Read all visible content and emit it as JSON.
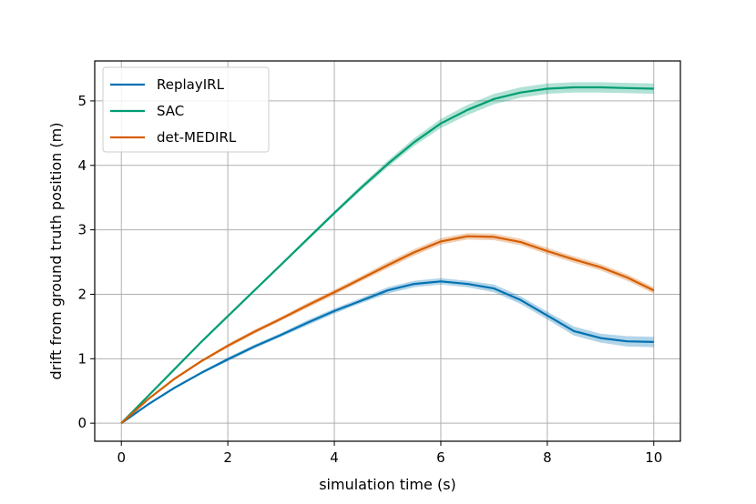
{
  "chart_data": {
    "type": "line",
    "title": "",
    "xlabel": "simulation time (s)",
    "ylabel": "drift from ground truth position (m)",
    "xlim": [
      -0.5,
      10.5
    ],
    "ylim": [
      -0.28,
      5.62
    ],
    "xticks": [
      0,
      2,
      4,
      6,
      8,
      10
    ],
    "yticks": [
      0,
      1,
      2,
      3,
      4,
      5
    ],
    "xtick_labels": [
      "0",
      "2",
      "4",
      "6",
      "8",
      "10"
    ],
    "ytick_labels": [
      "0",
      "1",
      "2",
      "3",
      "4",
      "5"
    ],
    "grid": true,
    "legend_position": "top-left",
    "series": [
      {
        "name": "ReplayIRL",
        "color": "#0072b2",
        "x": [
          0,
          0.5,
          1,
          1.5,
          2,
          2.5,
          3,
          3.5,
          4,
          4.5,
          5,
          5.5,
          6,
          6.5,
          7,
          7.5,
          8,
          8.5,
          9,
          9.5,
          10
        ],
        "values": [
          0,
          0.29,
          0.55,
          0.78,
          0.99,
          1.19,
          1.37,
          1.56,
          1.74,
          1.9,
          2.06,
          2.16,
          2.2,
          2.16,
          2.09,
          1.91,
          1.67,
          1.43,
          1.32,
          1.27,
          1.26
        ],
        "band": [
          0,
          0.01,
          0.02,
          0.02,
          0.03,
          0.03,
          0.03,
          0.04,
          0.04,
          0.04,
          0.05,
          0.05,
          0.05,
          0.05,
          0.06,
          0.06,
          0.06,
          0.07,
          0.07,
          0.08,
          0.08
        ]
      },
      {
        "name": "SAC",
        "color": "#009e73",
        "x": [
          0,
          0.5,
          1,
          1.5,
          2,
          2.5,
          3,
          3.5,
          4,
          4.5,
          5,
          5.5,
          6,
          6.5,
          7,
          7.5,
          8,
          8.5,
          9,
          9.5,
          10
        ],
        "values": [
          0,
          0.42,
          0.84,
          1.26,
          1.66,
          2.06,
          2.46,
          2.86,
          3.26,
          3.65,
          4.02,
          4.36,
          4.65,
          4.86,
          5.03,
          5.13,
          5.19,
          5.21,
          5.21,
          5.2,
          5.19
        ],
        "band": [
          0,
          0.01,
          0.01,
          0.02,
          0.02,
          0.02,
          0.02,
          0.03,
          0.03,
          0.04,
          0.05,
          0.06,
          0.07,
          0.08,
          0.08,
          0.08,
          0.08,
          0.08,
          0.08,
          0.08,
          0.08
        ]
      },
      {
        "name": "det-MEDIRL",
        "color": "#d55e00",
        "x": [
          0,
          0.5,
          1,
          1.5,
          2,
          2.5,
          3,
          3.5,
          4,
          4.5,
          5,
          5.5,
          6,
          6.5,
          7,
          7.5,
          8,
          8.5,
          9,
          9.5,
          10
        ],
        "values": [
          0,
          0.37,
          0.69,
          0.96,
          1.2,
          1.42,
          1.62,
          1.83,
          2.03,
          2.24,
          2.45,
          2.65,
          2.82,
          2.9,
          2.89,
          2.81,
          2.67,
          2.54,
          2.42,
          2.26,
          2.06
        ],
        "band": [
          0,
          0.01,
          0.02,
          0.02,
          0.03,
          0.03,
          0.03,
          0.04,
          0.04,
          0.04,
          0.05,
          0.05,
          0.05,
          0.05,
          0.05,
          0.05,
          0.05,
          0.05,
          0.05,
          0.05,
          0.05
        ]
      }
    ]
  }
}
